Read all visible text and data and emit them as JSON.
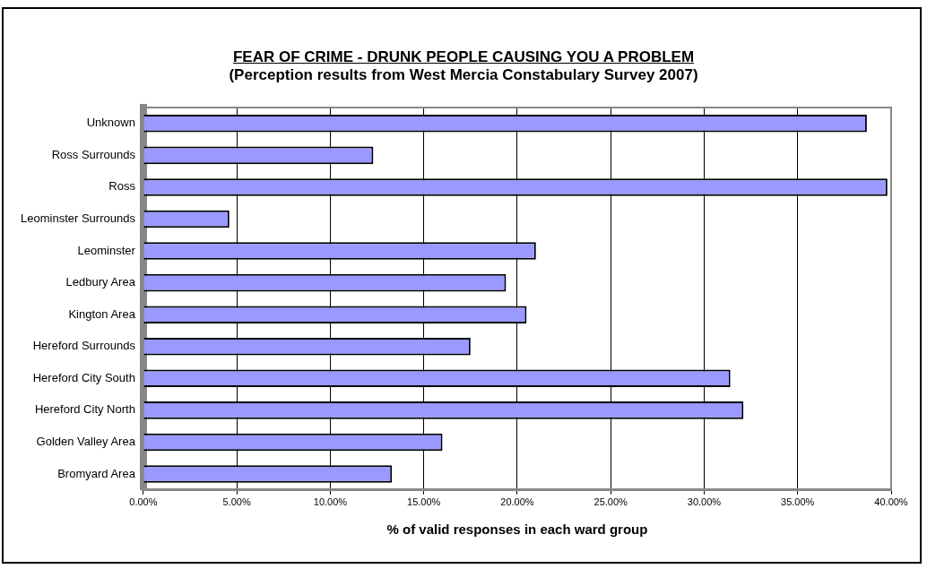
{
  "chart_data": {
    "type": "bar",
    "orientation": "horizontal",
    "title": "FEAR OF CRIME - DRUNK PEOPLE CAUSING YOU A PROBLEM",
    "subtitle": "(Perception results from West Mercia Constabulary Survey 2007)",
    "xlabel": "% of valid responses in each ward group",
    "categories": [
      "Unknown",
      "Ross Surrounds",
      "Ross",
      "Leominster Surrounds",
      "Leominster",
      "Ledbury Area",
      "Kington Area",
      "Hereford Surrounds",
      "Hereford City South",
      "Hereford City North",
      "Golden Valley Area",
      "Bromyard Area"
    ],
    "values": [
      38.7,
      12.3,
      39.8,
      4.6,
      21.0,
      19.4,
      20.5,
      17.5,
      31.4,
      32.1,
      16.0,
      13.3
    ],
    "color": "#9999ff",
    "xlim": [
      0,
      40
    ],
    "xticks": [
      {
        "value": 0,
        "label": "0.00%"
      },
      {
        "value": 5,
        "label": "5.00%"
      },
      {
        "value": 10,
        "label": "10.00%"
      },
      {
        "value": 15,
        "label": "15.00%"
      },
      {
        "value": 20,
        "label": "20.00%"
      },
      {
        "value": 25,
        "label": "25.00%"
      },
      {
        "value": 30,
        "label": "30.00%"
      },
      {
        "value": 35,
        "label": "35.00%"
      },
      {
        "value": 40,
        "label": "40.00%"
      }
    ],
    "grid": "x",
    "legend": false
  }
}
